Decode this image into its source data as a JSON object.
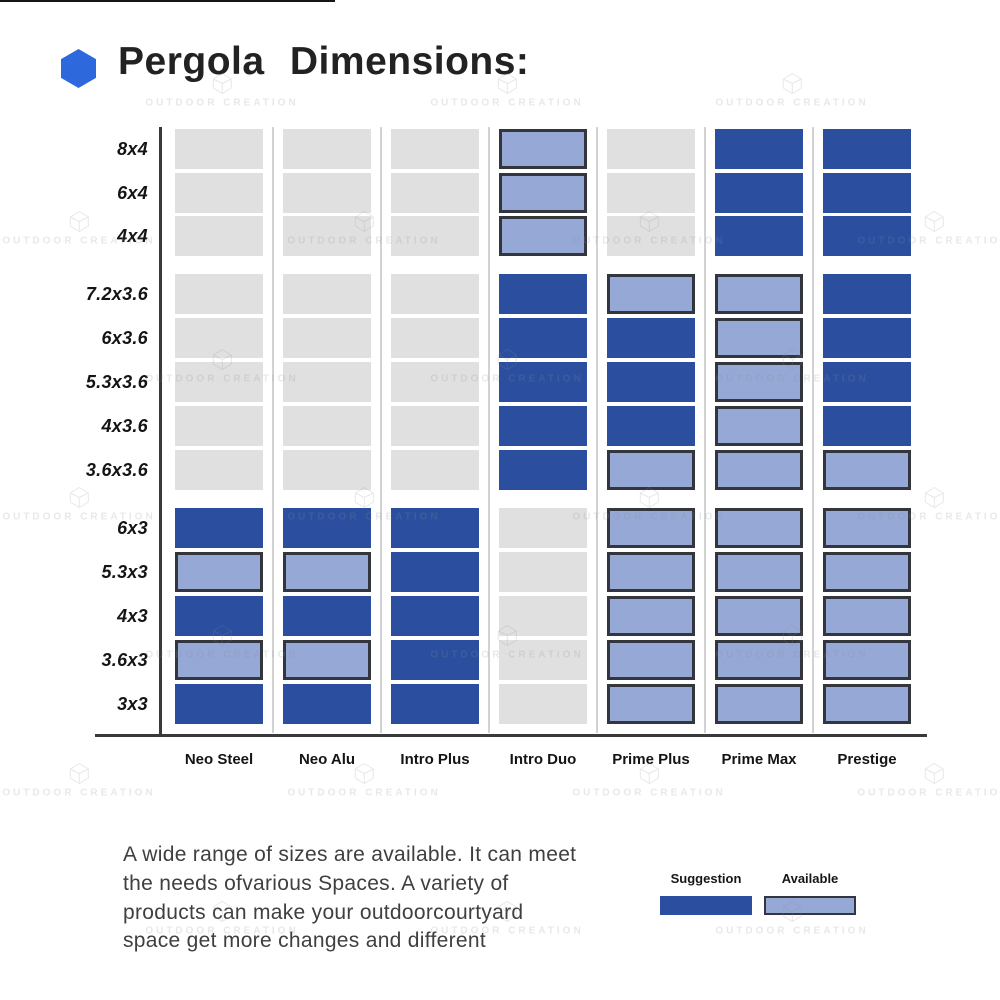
{
  "title": {
    "text": "Pergola Dimensions:"
  },
  "watermark": {
    "text": "OUTDOOR CREATION"
  },
  "chart_data": {
    "type": "heatmap",
    "title": "Pergola Dimensions:",
    "columns": [
      "Neo Steel",
      "Neo Alu",
      "Intro Plus",
      "Intro Duo",
      "Prime Plus",
      "Prime Max",
      "Prestige"
    ],
    "rows": [
      "8x4",
      "6x4",
      "4x4",
      "7.2x3.6",
      "6x3.6",
      "5.3x3.6",
      "4x3.6",
      "3.6x3.6",
      "6x3",
      "5.3x3",
      "4x3",
      "3.6x3",
      "3x3"
    ],
    "row_groups": [
      [
        "8x4",
        "6x4",
        "4x4"
      ],
      [
        "7.2x3.6",
        "6x3.6",
        "5.3x3.6",
        "4x3.6",
        "3.6x3.6"
      ],
      [
        "6x3",
        "5.3x3",
        "4x3",
        "3.6x3",
        "3x3"
      ]
    ],
    "cell_states_legend": "none = size not offered (gray), suggestion = dark blue, available = light blue with dark border",
    "cells": [
      [
        "none",
        "none",
        "none",
        "available",
        "none",
        "suggestion",
        "suggestion"
      ],
      [
        "none",
        "none",
        "none",
        "available",
        "none",
        "suggestion",
        "suggestion"
      ],
      [
        "none",
        "none",
        "none",
        "available",
        "none",
        "suggestion",
        "suggestion"
      ],
      [
        "none",
        "none",
        "none",
        "suggestion",
        "available",
        "available",
        "suggestion"
      ],
      [
        "none",
        "none",
        "none",
        "suggestion",
        "suggestion",
        "available",
        "suggestion"
      ],
      [
        "none",
        "none",
        "none",
        "suggestion",
        "suggestion",
        "available",
        "suggestion"
      ],
      [
        "none",
        "none",
        "none",
        "suggestion",
        "suggestion",
        "available",
        "suggestion"
      ],
      [
        "none",
        "none",
        "none",
        "suggestion",
        "available",
        "available",
        "available"
      ],
      [
        "suggestion",
        "suggestion",
        "suggestion",
        "none",
        "available",
        "available",
        "available"
      ],
      [
        "available",
        "available",
        "suggestion",
        "none",
        "available",
        "available",
        "available"
      ],
      [
        "suggestion",
        "suggestion",
        "suggestion",
        "none",
        "available",
        "available",
        "available"
      ],
      [
        "available",
        "available",
        "suggestion",
        "none",
        "available",
        "available",
        "available"
      ],
      [
        "suggestion",
        "suggestion",
        "suggestion",
        "none",
        "available",
        "available",
        "available"
      ]
    ],
    "legend": [
      {
        "label": "Suggestion",
        "state": "suggestion"
      },
      {
        "label": "Available",
        "state": "available"
      }
    ],
    "colors": {
      "suggestion": "#2b4f9e",
      "available": "#96a8d6",
      "available_border": "#33373d",
      "none": "#e0e0e0",
      "hexagon_bullet": "#2d68dc"
    },
    "grid": false,
    "legend_position": "bottom-right"
  },
  "description": {
    "lines": [
      "A wide range of sizes are available. It can meet",
      "the needs ofvarious Spaces. A variety of",
      "products can make your outdoorcourtyard",
      "space get more changes and different"
    ]
  }
}
